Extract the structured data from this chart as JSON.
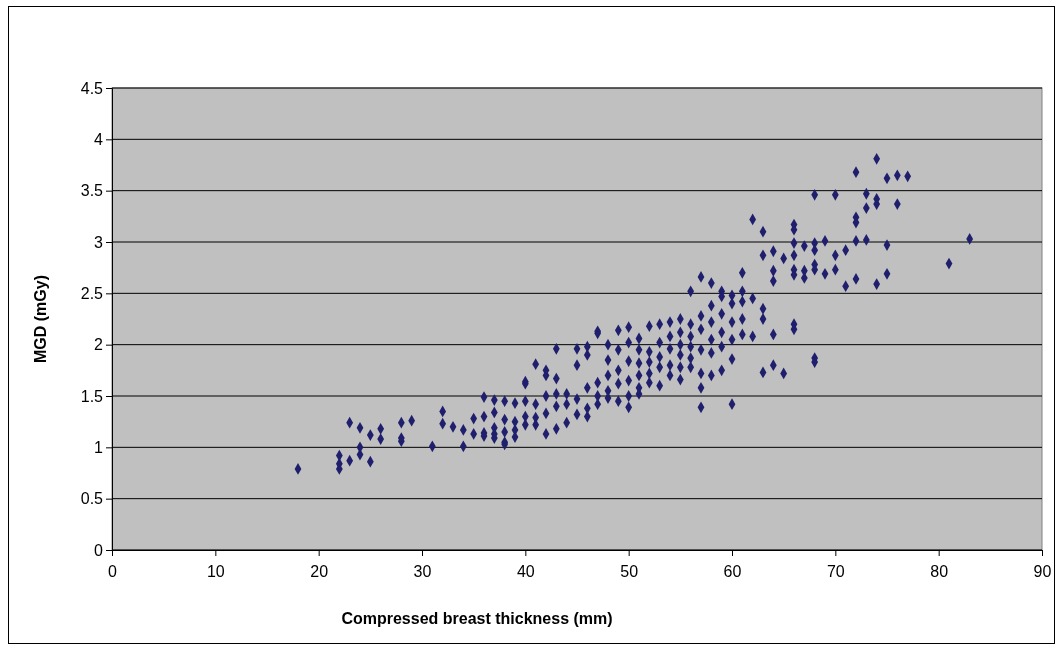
{
  "chart_data": {
    "type": "scatter",
    "xlabel": "Compressed breast thickness (mm)",
    "ylabel": "MGD (mGy)",
    "xlim": [
      0,
      90
    ],
    "xticks": [
      0,
      10,
      20,
      30,
      40,
      50,
      60,
      70,
      80,
      90
    ],
    "ylim": [
      0,
      4.5
    ],
    "yticks": [
      0,
      0.5,
      1,
      1.5,
      2,
      2.5,
      3,
      3.5,
      4,
      4.5
    ],
    "grid": "y",
    "marker": "diamond",
    "series": [
      {
        "color": "#1f1f6e",
        "x": [
          18,
          22,
          22,
          22,
          23,
          23,
          24,
          24,
          24,
          25,
          25,
          26,
          26,
          28,
          28,
          28,
          29,
          31,
          32,
          32,
          33,
          34,
          34,
          35,
          35,
          36,
          36,
          36,
          36,
          37,
          37,
          37,
          37,
          37,
          38,
          38,
          38,
          38,
          38,
          39,
          39,
          39,
          39,
          40,
          40,
          40,
          40,
          40,
          41,
          41,
          41,
          41,
          42,
          42,
          42,
          42,
          42,
          43,
          43,
          43,
          43,
          43,
          44,
          44,
          44,
          45,
          45,
          45,
          45,
          46,
          46,
          46,
          46,
          46,
          47,
          47,
          47,
          47,
          47,
          48,
          48,
          48,
          48,
          48,
          49,
          49,
          49,
          49,
          49,
          50,
          50,
          50,
          50,
          50,
          50,
          51,
          51,
          51,
          51,
          51,
          51,
          52,
          52,
          52,
          52,
          52,
          53,
          53,
          53,
          53,
          53,
          54,
          54,
          54,
          54,
          54,
          55,
          55,
          55,
          55,
          55,
          55,
          56,
          56,
          56,
          56,
          56,
          56,
          57,
          57,
          57,
          57,
          57,
          57,
          57,
          58,
          58,
          58,
          58,
          58,
          58,
          59,
          59,
          59,
          59,
          59,
          59,
          60,
          60,
          60,
          60,
          60,
          60,
          61,
          61,
          61,
          61,
          61,
          62,
          62,
          62,
          63,
          63,
          63,
          63,
          63,
          64,
          64,
          64,
          64,
          64,
          65,
          65,
          66,
          66,
          66,
          66,
          66,
          66,
          66,
          66,
          67,
          67,
          67,
          68,
          68,
          68,
          68,
          68,
          68,
          68,
          69,
          69,
          70,
          70,
          70,
          71,
          71,
          72,
          72,
          72,
          72,
          72,
          73,
          73,
          73,
          74,
          74,
          74,
          74,
          75,
          75,
          75,
          76,
          76,
          77,
          81,
          83
        ],
        "values": [
          0.79,
          0.92,
          0.84,
          0.79,
          1.24,
          0.87,
          1.19,
          1.0,
          0.93,
          1.12,
          0.86,
          1.18,
          1.08,
          1.24,
          1.09,
          1.06,
          1.26,
          1.01,
          1.35,
          1.23,
          1.2,
          1.01,
          1.17,
          1.28,
          1.13,
          1.49,
          1.3,
          1.14,
          1.11,
          1.46,
          1.34,
          1.19,
          1.13,
          1.09,
          1.45,
          1.27,
          1.15,
          1.05,
          1.03,
          1.43,
          1.25,
          1.17,
          1.1,
          1.64,
          1.62,
          1.45,
          1.3,
          1.22,
          1.81,
          1.42,
          1.29,
          1.22,
          1.75,
          1.7,
          1.5,
          1.33,
          1.13,
          1.96,
          1.67,
          1.52,
          1.4,
          1.18,
          1.52,
          1.42,
          1.24,
          1.96,
          1.8,
          1.47,
          1.32,
          1.98,
          1.9,
          1.58,
          1.38,
          1.3,
          2.13,
          2.11,
          1.63,
          1.5,
          1.42,
          2.0,
          1.85,
          1.7,
          1.55,
          1.48,
          2.14,
          1.95,
          1.75,
          1.62,
          1.45,
          2.17,
          2.02,
          1.84,
          1.65,
          1.5,
          1.39,
          2.06,
          1.95,
          1.82,
          1.7,
          1.58,
          1.52,
          2.18,
          1.93,
          1.83,
          1.72,
          1.63,
          2.2,
          2.02,
          1.88,
          1.78,
          1.6,
          2.22,
          2.08,
          1.96,
          1.8,
          1.7,
          2.25,
          2.12,
          2.0,
          1.9,
          1.78,
          1.66,
          2.52,
          2.2,
          2.08,
          1.98,
          1.87,
          1.78,
          2.66,
          2.28,
          2.15,
          1.95,
          1.72,
          1.58,
          1.39,
          2.6,
          2.38,
          2.22,
          2.05,
          1.92,
          1.7,
          2.52,
          2.47,
          2.3,
          2.12,
          1.98,
          1.75,
          2.48,
          2.4,
          2.22,
          2.05,
          1.86,
          1.42,
          2.7,
          2.52,
          2.42,
          2.25,
          2.1,
          3.22,
          2.45,
          2.08,
          3.1,
          2.87,
          2.35,
          2.25,
          1.73,
          2.91,
          2.72,
          2.62,
          1.8,
          2.1,
          2.84,
          1.72,
          3.17,
          3.12,
          2.99,
          2.87,
          2.73,
          2.68,
          2.2,
          2.15,
          2.96,
          2.72,
          2.65,
          3.46,
          2.99,
          2.92,
          2.78,
          2.73,
          1.87,
          1.83,
          3.01,
          2.69,
          3.46,
          2.87,
          2.73,
          2.92,
          2.57,
          3.68,
          3.24,
          3.19,
          3.01,
          2.64,
          3.47,
          3.33,
          3.02,
          3.81,
          3.42,
          3.37,
          2.59,
          3.62,
          2.97,
          2.69,
          3.65,
          3.37,
          3.64,
          2.79,
          3.03
        ]
      }
    ]
  }
}
